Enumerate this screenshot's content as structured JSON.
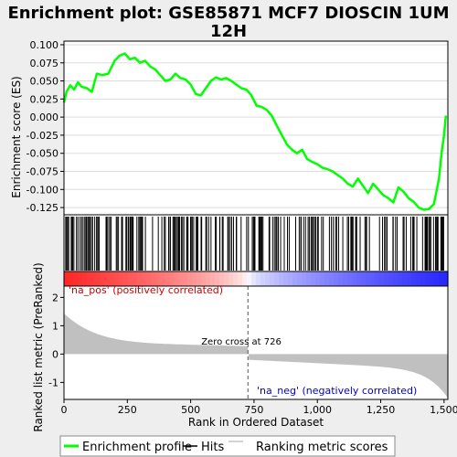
{
  "chart_data": {
    "type": "line",
    "title_line1": "Enrichment plot: GSE85871 MCF7 DIOSCIN 1UM",
    "title_line2": "12H",
    "xlabel": "Rank in Ordered Dataset",
    "ylabel_top": "Enrichment score (ES)",
    "ylabel_bottom": "Ranked list metric (PreRanked)",
    "xlim": [
      0,
      1515
    ],
    "x_ticks": [
      0,
      250,
      500,
      750,
      1000,
      1250,
      1500
    ],
    "x_tick_labels": [
      "0",
      "250",
      "500",
      "750",
      "1,000",
      "1,250",
      "1,500"
    ],
    "es_ylim": [
      -0.135,
      0.105
    ],
    "es_ticks": [
      0.1,
      0.075,
      0.05,
      0.025,
      0.0,
      -0.025,
      -0.05,
      -0.075,
      -0.1,
      -0.125
    ],
    "es_tick_labels": [
      "0.100",
      "0.075",
      "0.050",
      "0.025",
      "0.000",
      "-0.025",
      "-0.050",
      "-0.075",
      "-0.100",
      "-0.125"
    ],
    "metric_ylim": [
      -1.6,
      2.4
    ],
    "metric_ticks": [
      2,
      1,
      0,
      -1
    ],
    "metric_tick_labels": [
      "2",
      "1",
      "0",
      "-1"
    ],
    "zero_cross_rank": 726,
    "zero_cross_label": "Zero cross at 726",
    "pos_label": "'na_pos' (positively correlated)",
    "neg_label": "'na_neg' (negatively correlated)",
    "enrichment_profile": {
      "x": [
        0,
        10,
        25,
        40,
        55,
        70,
        90,
        110,
        130,
        150,
        175,
        200,
        220,
        240,
        260,
        280,
        300,
        320,
        340,
        360,
        380,
        400,
        420,
        440,
        460,
        480,
        500,
        520,
        540,
        560,
        580,
        600,
        620,
        640,
        660,
        680,
        700,
        720,
        740,
        760,
        780,
        800,
        820,
        840,
        860,
        880,
        900,
        920,
        940,
        960,
        980,
        1000,
        1020,
        1040,
        1060,
        1080,
        1100,
        1120,
        1140,
        1160,
        1180,
        1200,
        1220,
        1240,
        1260,
        1280,
        1300,
        1320,
        1340,
        1360,
        1380,
        1400,
        1420,
        1440,
        1460,
        1480,
        1490,
        1500,
        1507
      ],
      "y": [
        0.02,
        0.035,
        0.044,
        0.038,
        0.048,
        0.042,
        0.04,
        0.035,
        0.06,
        0.058,
        0.06,
        0.078,
        0.085,
        0.088,
        0.08,
        0.082,
        0.075,
        0.078,
        0.07,
        0.066,
        0.058,
        0.05,
        0.052,
        0.06,
        0.054,
        0.052,
        0.045,
        0.032,
        0.03,
        0.04,
        0.05,
        0.055,
        0.052,
        0.054,
        0.05,
        0.045,
        0.04,
        0.038,
        0.03,
        0.016,
        0.014,
        0.01,
        0.002,
        -0.012,
        -0.025,
        -0.038,
        -0.045,
        -0.05,
        -0.045,
        -0.058,
        -0.062,
        -0.065,
        -0.07,
        -0.072,
        -0.075,
        -0.08,
        -0.085,
        -0.092,
        -0.096,
        -0.085,
        -0.095,
        -0.105,
        -0.092,
        -0.1,
        -0.108,
        -0.112,
        -0.118,
        -0.097,
        -0.103,
        -0.112,
        -0.117,
        -0.125,
        -0.128,
        -0.127,
        -0.12,
        -0.085,
        -0.05,
        -0.025,
        0.002
      ]
    },
    "metric_range": {
      "max_start": 1.7,
      "at_zero_cross": 0.28,
      "min_end": -1.55
    },
    "legend": [
      "Enrichment profile",
      "Hits",
      "Ranking metric scores"
    ],
    "colors": {
      "profile": "#00ff00",
      "hits": "#000000",
      "metric": "#c0c0c0",
      "pos": "#ff0000",
      "neg": "#0000ff",
      "title_bg": "#eeeeee"
    }
  }
}
